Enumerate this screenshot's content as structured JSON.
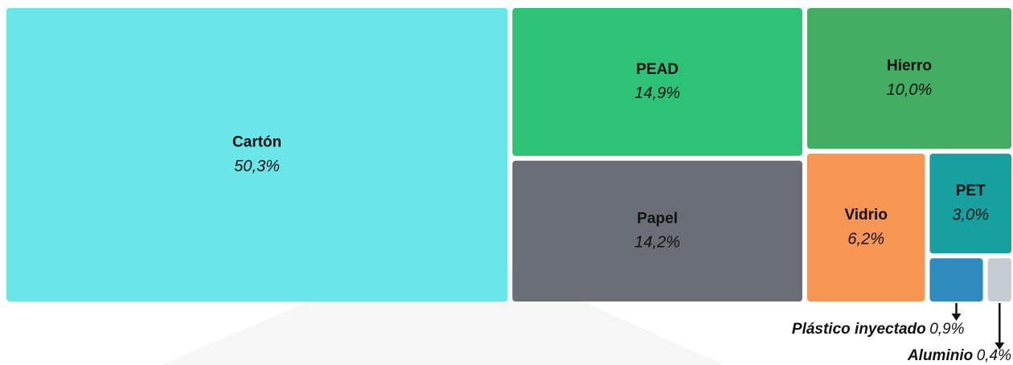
{
  "chart_data": {
    "type": "treemap",
    "categories": [
      "Cartón",
      "PEAD",
      "Papel",
      "Hierro",
      "Vidrio",
      "PET",
      "Plástico inyectado",
      "Aluminio"
    ],
    "values": [
      50.3,
      14.9,
      14.2,
      10.0,
      6.2,
      3.0,
      0.9,
      0.4
    ],
    "value_labels": [
      "50,3%",
      "14,9%",
      "14,2%",
      "10,0%",
      "6,2%",
      "3,0%",
      "0,9%",
      "0,4%"
    ],
    "colors": [
      "#6ae5e8",
      "#2cc377",
      "#6a6e76",
      "#43ad62",
      "#f79552",
      "#16a0a0",
      "#2e8bbd",
      "#c6ccd2"
    ]
  }
}
